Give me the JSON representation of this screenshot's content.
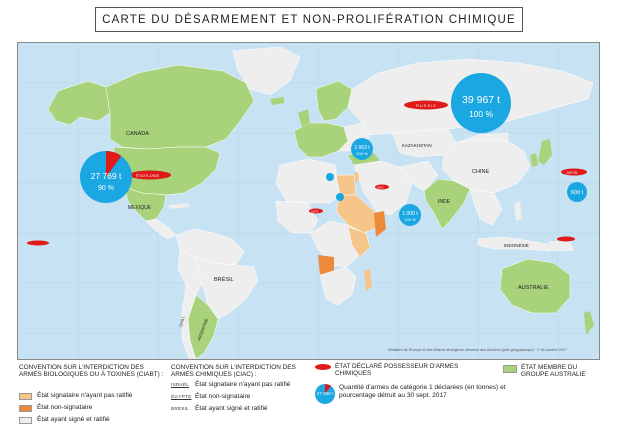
{
  "title": "CARTE DU DÉSARMEMENT ET NON-PROLIFÉRATION CHIMIQUE",
  "map": {
    "country_labels": {
      "canada": "CANADA",
      "mexique": "MEXIQUE",
      "bresil": "BRÉSIL",
      "chili": "CHILI",
      "argentine": "ARGENTINE",
      "kazakhstan": "KAZAKHSTAN",
      "chine": "CHINE",
      "inde": "INDE",
      "indonesie": "INDONÉSIE",
      "australie": "AUSTRALIE",
      "russie": "RUSSIE",
      "etats_unis": "ÉTATS-UNIS",
      "iraq": "IRAQ",
      "libye": "LIBYE",
      "japon": "JAPON"
    },
    "stockpiles": [
      {
        "id": "russia",
        "tonnes": "39 967 t",
        "percent": "100 %",
        "destroyed_fraction": 1.0
      },
      {
        "id": "usa",
        "tonnes": "27 769 t",
        "percent": "90 %",
        "destroyed_fraction": 0.9
      },
      {
        "id": "syria_region",
        "tonnes": "1 063 t",
        "percent": "100 %",
        "destroyed_fraction": 1.0
      },
      {
        "id": "india",
        "tonnes": "1 000 t",
        "percent": "100 %",
        "destroyed_fraction": 1.0
      },
      {
        "id": "japan",
        "tonnes": "600 t",
        "percent": "",
        "destroyed_fraction": 1.0
      },
      {
        "id": "libya",
        "tonnes": "",
        "percent": "",
        "destroyed_fraction": 1.0
      },
      {
        "id": "iraq",
        "tonnes": "",
        "percent": "",
        "destroyed_fraction": 1.0
      }
    ],
    "credit": "Ministère de l'Europe et des Affaires étrangères, direction des Archives (pôle géographique) · © 16 octobre 2017"
  },
  "legend": {
    "ciab_title": "CONVENTION SUR L'INTERDICTION DES ARMES BIOLOGIQUES OU À TOXINES (CIABT) :",
    "ciab_items": [
      {
        "label": "État signataire n'ayant pas ratifié",
        "color": "#f6c58a"
      },
      {
        "label": "État non-signataire",
        "color": "#ec8a3a"
      },
      {
        "label": "État ayant signé et ratifié",
        "color": "#eeeeee"
      }
    ],
    "ciac_title": "CONVENTION SUR L'INTERDICTION DES ARMES CHIMIQUES (CIAC) :",
    "ciac_items": [
      {
        "sample": "ISRAËL",
        "label": "État signataire n'ayant pas ratifié"
      },
      {
        "sample": "ÉGYPTE",
        "label": "État non-signataire"
      },
      {
        "sample": "BRÉSIL",
        "label": "État ayant signé et ratifié"
      }
    ],
    "possessor_label": "ÉTAT DÉCLARÉ POSSESSEUR D'ARMES CHIMIQUES",
    "quantity_sample": "27 000 t",
    "quantity_label": "Quantité d'armes de catégorie 1 déclarées (en tonnes) et pourcentage détruit au 30 sept. 2017",
    "australia_group_label": "ÉTAT MEMBRE DU GROUPE AUSTRALIE",
    "colors": {
      "possessor": "#e0191b",
      "circle": "#1aa7e2",
      "australia_group": "#a9d37a"
    }
  }
}
